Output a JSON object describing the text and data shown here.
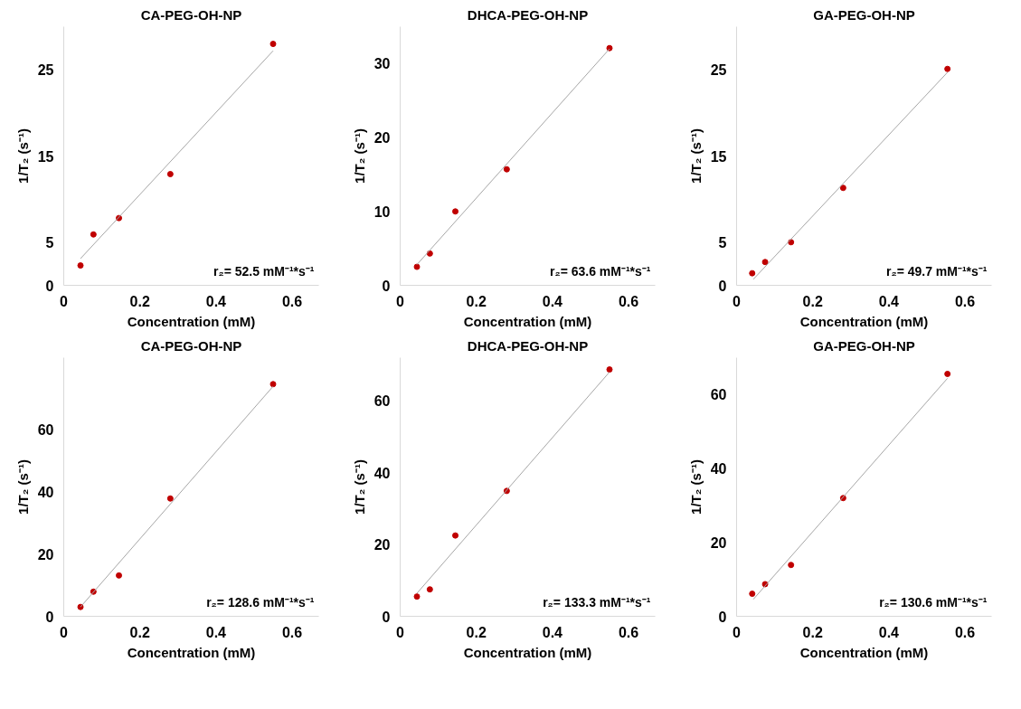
{
  "chart_data": [
    {
      "type": "scatter",
      "title": "CA-PEG-OH-NP",
      "xlabel": "Concentration (mM)",
      "ylabel": "1/T₂ (s⁻¹)",
      "annotations": [
        "r₂= 52.5 mM⁻¹*s⁻¹"
      ],
      "xlim": [
        0,
        0.67
      ],
      "ylim": [
        0,
        30
      ],
      "xticks": [
        0,
        0.2,
        0.4,
        0.6
      ],
      "yticks": [
        0,
        5,
        15,
        25
      ],
      "grid": false,
      "marker": "circle",
      "series": [
        {
          "color": "#c00000",
          "x": [
            0.044,
            0.078,
            0.145,
            0.28,
            0.55
          ],
          "values": [
            2.3,
            5.9,
            7.8,
            12.9,
            28.0
          ]
        },
        {
          "type": "line",
          "color": "#a6a6a6",
          "marker": "none",
          "x": [
            0.044,
            0.55
          ],
          "values": [
            3.1,
            27.2
          ]
        }
      ]
    },
    {
      "type": "scatter",
      "title": "DHCA-PEG-OH-NP",
      "xlabel": "Concentration (mM)",
      "ylabel": "1/T₂ (s⁻¹)",
      "annotations": [
        "r₂= 63.6 mM⁻¹*s⁻¹"
      ],
      "xlim": [
        0,
        0.67
      ],
      "ylim": [
        0,
        35
      ],
      "xticks": [
        0,
        0.2,
        0.4,
        0.6
      ],
      "yticks": [
        0,
        10,
        20,
        30
      ],
      "grid": false,
      "marker": "circle",
      "series": [
        {
          "color": "#c00000",
          "x": [
            0.044,
            0.078,
            0.145,
            0.28,
            0.55
          ],
          "values": [
            2.5,
            4.3,
            10.0,
            15.7,
            32.1
          ]
        },
        {
          "type": "line",
          "color": "#a6a6a6",
          "marker": "none",
          "x": [
            0.044,
            0.55
          ],
          "values": [
            2.8,
            32.0
          ]
        }
      ]
    },
    {
      "type": "scatter",
      "title": "GA-PEG-OH-NP",
      "xlabel": "Concentration (mM)",
      "ylabel": "1/T₂ (s⁻¹)",
      "annotations": [
        "r₂= 49.7 mM⁻¹*s⁻¹"
      ],
      "xlim": [
        0,
        0.67
      ],
      "ylim": [
        0,
        30
      ],
      "xticks": [
        0,
        0.2,
        0.4,
        0.6
      ],
      "yticks": [
        0,
        5,
        15,
        25
      ],
      "grid": false,
      "marker": "circle",
      "series": [
        {
          "color": "#c00000",
          "x": [
            0.041,
            0.075,
            0.143,
            0.28,
            0.554
          ],
          "values": [
            1.4,
            2.7,
            5.0,
            11.3,
            25.1
          ]
        },
        {
          "type": "line",
          "color": "#a6a6a6",
          "marker": "none",
          "x": [
            0.044,
            0.554
          ],
          "values": [
            0.7,
            24.7
          ]
        }
      ]
    },
    {
      "type": "scatter",
      "title": "CA-PEG-OH-NP",
      "xlabel": "Concentration (mM)",
      "ylabel": "1/T₂ (s⁻¹)",
      "annotations": [
        "r₂= 128.6 mM⁻¹*s⁻¹"
      ],
      "xlim": [
        0,
        0.67
      ],
      "ylim": [
        0,
        83
      ],
      "xticks": [
        0,
        0.2,
        0.4,
        0.6
      ],
      "yticks": [
        0,
        20,
        40,
        60
      ],
      "grid": false,
      "marker": "circle",
      "series": [
        {
          "color": "#c00000",
          "x": [
            0.044,
            0.078,
            0.145,
            0.28,
            0.55
          ],
          "values": [
            3.0,
            7.9,
            13.1,
            37.8,
            74.5
          ]
        },
        {
          "type": "line",
          "color": "#a6a6a6",
          "marker": "none",
          "x": [
            0.044,
            0.55
          ],
          "values": [
            3.0,
            73.8
          ]
        }
      ]
    },
    {
      "type": "scatter",
      "title": "DHCA-PEG-OH-NP",
      "xlabel": "Concentration (mM)",
      "ylabel": "1/T₂ (s⁻¹)",
      "annotations": [
        "r₂= 133.3 mM⁻¹*s⁻¹"
      ],
      "xlim": [
        0,
        0.67
      ],
      "ylim": [
        0,
        72
      ],
      "xticks": [
        0,
        0.2,
        0.4,
        0.6
      ],
      "yticks": [
        0,
        20,
        40,
        60
      ],
      "grid": false,
      "marker": "circle",
      "series": [
        {
          "color": "#c00000",
          "x": [
            0.044,
            0.078,
            0.145,
            0.28,
            0.55
          ],
          "values": [
            5.5,
            7.5,
            22.5,
            34.9,
            68.7
          ]
        },
        {
          "type": "line",
          "color": "#a6a6a6",
          "marker": "none",
          "x": [
            0.044,
            0.55
          ],
          "values": [
            6.4,
            68.0
          ]
        }
      ]
    },
    {
      "type": "scatter",
      "title": "GA-PEG-OH-NP",
      "xlabel": "Concentration (mM)",
      "ylabel": "1/T₂ (s⁻¹)",
      "annotations": [
        "r₂= 130.6 mM⁻¹*s⁻¹"
      ],
      "xlim": [
        0,
        0.67
      ],
      "ylim": [
        0,
        70
      ],
      "xticks": [
        0,
        0.2,
        0.4,
        0.6
      ],
      "yticks": [
        0,
        20,
        40,
        60
      ],
      "grid": false,
      "marker": "circle",
      "series": [
        {
          "color": "#c00000",
          "x": [
            0.041,
            0.075,
            0.143,
            0.28,
            0.554
          ],
          "values": [
            6.1,
            8.7,
            13.9,
            32.0,
            65.6
          ]
        },
        {
          "type": "line",
          "color": "#a6a6a6",
          "marker": "none",
          "x": [
            0.044,
            0.554
          ],
          "values": [
            4.6,
            64.4
          ]
        }
      ]
    }
  ]
}
